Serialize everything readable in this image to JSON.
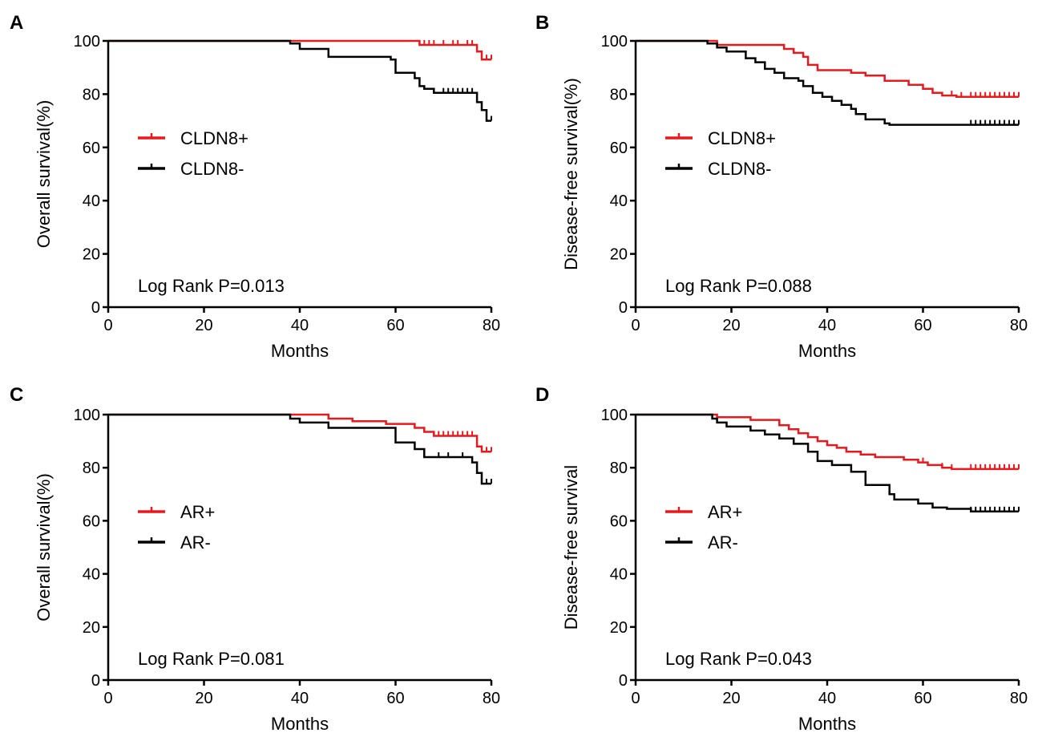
{
  "colors": {
    "positive": "#e8191c",
    "negative": "#000000"
  },
  "chart_data": [
    {
      "panel": "A",
      "type": "line",
      "xlabel": "Months",
      "ylabel": "Overall survival(%)",
      "xlim": [
        0,
        80
      ],
      "ylim": [
        0,
        100
      ],
      "xticks": [
        "0",
        "20",
        "40",
        "60",
        "80"
      ],
      "yticks": [
        "0",
        "20",
        "40",
        "60",
        "80",
        "100"
      ],
      "legend_position": "middle-left",
      "annotation": "Log Rank P=0.013",
      "series": [
        {
          "name": "CLDN8+",
          "color": "#e8191c",
          "x": [
            0,
            65,
            65,
            77,
            77,
            78,
            78,
            80
          ],
          "y": [
            100,
            100,
            98.5,
            98.5,
            96,
            96,
            93,
            93
          ],
          "censored_x": [
            65,
            66,
            67,
            68,
            70,
            72,
            73,
            75,
            76,
            79,
            80
          ]
        },
        {
          "name": "CLDN8-",
          "color": "#000000",
          "x": [
            0,
            38,
            38,
            40,
            40,
            46,
            46,
            59,
            59,
            60,
            60,
            64,
            64,
            65,
            65,
            66,
            66,
            68,
            68,
            77,
            77,
            78,
            78,
            79,
            79,
            80
          ],
          "y": [
            100,
            100,
            99,
            99,
            97,
            97,
            94,
            94,
            93,
            93,
            88,
            88,
            86,
            86,
            83,
            83,
            82,
            82,
            80.5,
            80.5,
            77,
            77,
            74,
            74,
            70,
            70
          ],
          "censored_x": [
            70,
            71,
            72,
            73,
            74,
            75,
            76,
            79,
            80
          ]
        }
      ]
    },
    {
      "panel": "B",
      "type": "line",
      "xlabel": "Months",
      "ylabel": "Disease-free survival(%)",
      "xlim": [
        0,
        80
      ],
      "ylim": [
        0,
        100
      ],
      "xticks": [
        "0",
        "20",
        "40",
        "60",
        "80"
      ],
      "yticks": [
        "0",
        "20",
        "40",
        "60",
        "80",
        "100"
      ],
      "legend_position": "middle-left",
      "annotation": "Log Rank P=0.088",
      "series": [
        {
          "name": "CLDN8+",
          "color": "#e8191c",
          "x": [
            0,
            17,
            17,
            31,
            31,
            33,
            33,
            35,
            35,
            36,
            36,
            38,
            38,
            45,
            45,
            48,
            48,
            52,
            52,
            57,
            57,
            60,
            60,
            62,
            62,
            64,
            64,
            66,
            66,
            67,
            67,
            80
          ],
          "y": [
            100,
            100,
            98.5,
            98.5,
            97,
            97,
            95.5,
            95.5,
            94,
            94,
            91,
            91,
            89,
            89,
            88,
            88,
            87,
            87,
            85,
            85,
            83.5,
            83.5,
            82,
            82,
            80.5,
            80.5,
            79.5,
            79.5,
            79.5,
            79.5,
            79,
            79
          ],
          "censored_x": [
            60,
            66,
            68,
            70,
            71,
            72,
            73,
            74,
            75,
            76,
            77,
            78,
            79,
            80
          ]
        },
        {
          "name": "CLDN8-",
          "color": "#000000",
          "x": [
            0,
            15,
            15,
            17,
            17,
            19,
            19,
            23,
            23,
            25,
            25,
            27,
            27,
            29,
            29,
            31,
            31,
            34,
            34,
            35,
            35,
            37,
            37,
            39,
            39,
            41,
            41,
            43,
            43,
            45,
            45,
            46,
            46,
            48,
            48,
            52,
            52,
            53,
            53,
            80
          ],
          "y": [
            100,
            100,
            99,
            99,
            97.5,
            97.5,
            96,
            96,
            93.5,
            93.5,
            92,
            92,
            89.5,
            89.5,
            88,
            88,
            86,
            86,
            85,
            85,
            83,
            83,
            80.5,
            80.5,
            79,
            79,
            77.5,
            77.5,
            76,
            76,
            74.5,
            74.5,
            72.5,
            72.5,
            70.5,
            70.5,
            69,
            69,
            68.5,
            68.5
          ],
          "censored_x": [
            70,
            71,
            72,
            73,
            74,
            75,
            76,
            77,
            78,
            79,
            80
          ]
        }
      ]
    },
    {
      "panel": "C",
      "type": "line",
      "xlabel": "Months",
      "ylabel": "Overall survival(%)",
      "xlim": [
        0,
        80
      ],
      "ylim": [
        0,
        100
      ],
      "xticks": [
        "0",
        "20",
        "40",
        "60",
        "80"
      ],
      "yticks": [
        "0",
        "20",
        "40",
        "60",
        "80",
        "100"
      ],
      "legend_position": "middle-left",
      "annotation": "Log Rank P=0.081",
      "series": [
        {
          "name": "AR+",
          "color": "#e8191c",
          "x": [
            0,
            46,
            46,
            51,
            51,
            58,
            58,
            64,
            64,
            66,
            66,
            68,
            68,
            77,
            77,
            78,
            78,
            80
          ],
          "y": [
            100,
            100,
            98.5,
            98.5,
            97.5,
            97.5,
            96.5,
            96.5,
            95,
            95,
            93.5,
            93.5,
            92,
            92,
            88,
            88,
            86,
            86
          ],
          "censored_x": [
            64,
            66,
            68,
            69,
            70,
            71,
            72,
            73,
            74,
            75,
            76,
            78,
            79,
            80
          ]
        },
        {
          "name": "AR-",
          "color": "#000000",
          "x": [
            0,
            38,
            38,
            40,
            40,
            46,
            46,
            60,
            60,
            64,
            64,
            66,
            66,
            76,
            76,
            77,
            77,
            78,
            78,
            80
          ],
          "y": [
            100,
            100,
            98.5,
            98.5,
            97,
            97,
            95,
            95,
            89.5,
            89.5,
            87,
            87,
            84,
            84,
            82,
            82,
            78,
            78,
            74,
            74
          ],
          "censored_x": [
            66,
            69,
            71,
            74,
            76,
            78,
            79,
            80
          ]
        }
      ]
    },
    {
      "panel": "D",
      "type": "line",
      "xlabel": "Months",
      "ylabel": "Disease-free survival",
      "xlim": [
        0,
        80
      ],
      "ylim": [
        0,
        100
      ],
      "xticks": [
        "0",
        "20",
        "40",
        "60",
        "80"
      ],
      "yticks": [
        "0",
        "20",
        "40",
        "60",
        "80",
        "100"
      ],
      "legend_position": "middle-left",
      "annotation": "Log Rank P=0.043",
      "series": [
        {
          "name": "AR+",
          "color": "#e8191c",
          "x": [
            0,
            17,
            17,
            24,
            24,
            30,
            30,
            32,
            32,
            34,
            34,
            36,
            36,
            38,
            38,
            40,
            40,
            42,
            42,
            44,
            44,
            47,
            47,
            50,
            50,
            56,
            56,
            59,
            59,
            61,
            61,
            64,
            64,
            66,
            66,
            80
          ],
          "y": [
            100,
            100,
            99,
            99,
            98,
            98,
            96,
            96,
            94.5,
            94.5,
            93,
            93,
            91.5,
            91.5,
            90,
            90,
            88.5,
            88.5,
            87.5,
            87.5,
            86,
            86,
            85,
            85,
            84,
            84,
            83,
            83,
            82,
            82,
            81,
            81,
            80,
            80,
            79.5,
            79.5
          ],
          "censored_x": [
            60,
            64,
            66,
            70,
            71,
            72,
            73,
            74,
            75,
            76,
            77,
            78,
            79,
            80
          ]
        },
        {
          "name": "AR-",
          "color": "#000000",
          "x": [
            0,
            16,
            16,
            17,
            17,
            19,
            19,
            24,
            24,
            27,
            27,
            30,
            30,
            33,
            33,
            36,
            36,
            38,
            38,
            41,
            41,
            45,
            45,
            48,
            48,
            53,
            53,
            54,
            54,
            59,
            59,
            62,
            62,
            65,
            65,
            70,
            70,
            80
          ],
          "y": [
            100,
            100,
            98.5,
            98.5,
            97,
            97,
            95.5,
            95.5,
            94,
            94,
            92.5,
            92.5,
            91,
            91,
            89,
            89,
            86,
            86,
            82.5,
            82.5,
            81,
            81,
            78.5,
            78.5,
            73.5,
            73.5,
            70,
            70,
            68,
            68,
            66.5,
            66.5,
            65,
            65,
            64.5,
            64.5,
            63.5,
            63.5
          ],
          "censored_x": [
            70,
            71,
            72,
            73,
            74,
            75,
            76,
            77,
            78,
            79,
            80
          ]
        }
      ]
    }
  ]
}
